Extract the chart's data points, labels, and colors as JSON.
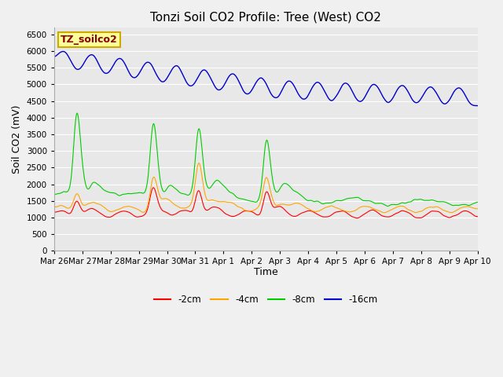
{
  "title": "Tonzi Soil CO2 Profile: Tree (West) CO2",
  "ylabel": "Soil CO2 (mV)",
  "xlabel": "Time",
  "legend_label": "TZ_soilco2",
  "legend_entries": [
    "-2cm",
    "-4cm",
    "-8cm",
    "-16cm"
  ],
  "line_colors": [
    "#ff0000",
    "#ffa500",
    "#00cc00",
    "#0000cc"
  ],
  "ylim": [
    0,
    6700
  ],
  "yticks": [
    0,
    500,
    1000,
    1500,
    2000,
    2500,
    3000,
    3500,
    4000,
    4500,
    5000,
    5500,
    6000,
    6500
  ],
  "fig_facecolor": "#f0f0f0",
  "ax_facecolor": "#e8e8e8",
  "title_fontsize": 11,
  "label_fontsize": 9,
  "tick_fontsize": 7.5,
  "legend_box_color": "#ffff99",
  "legend_box_edge": "#ccaa00",
  "legend_text_color": "#880000",
  "grid_color": "#ffffff"
}
